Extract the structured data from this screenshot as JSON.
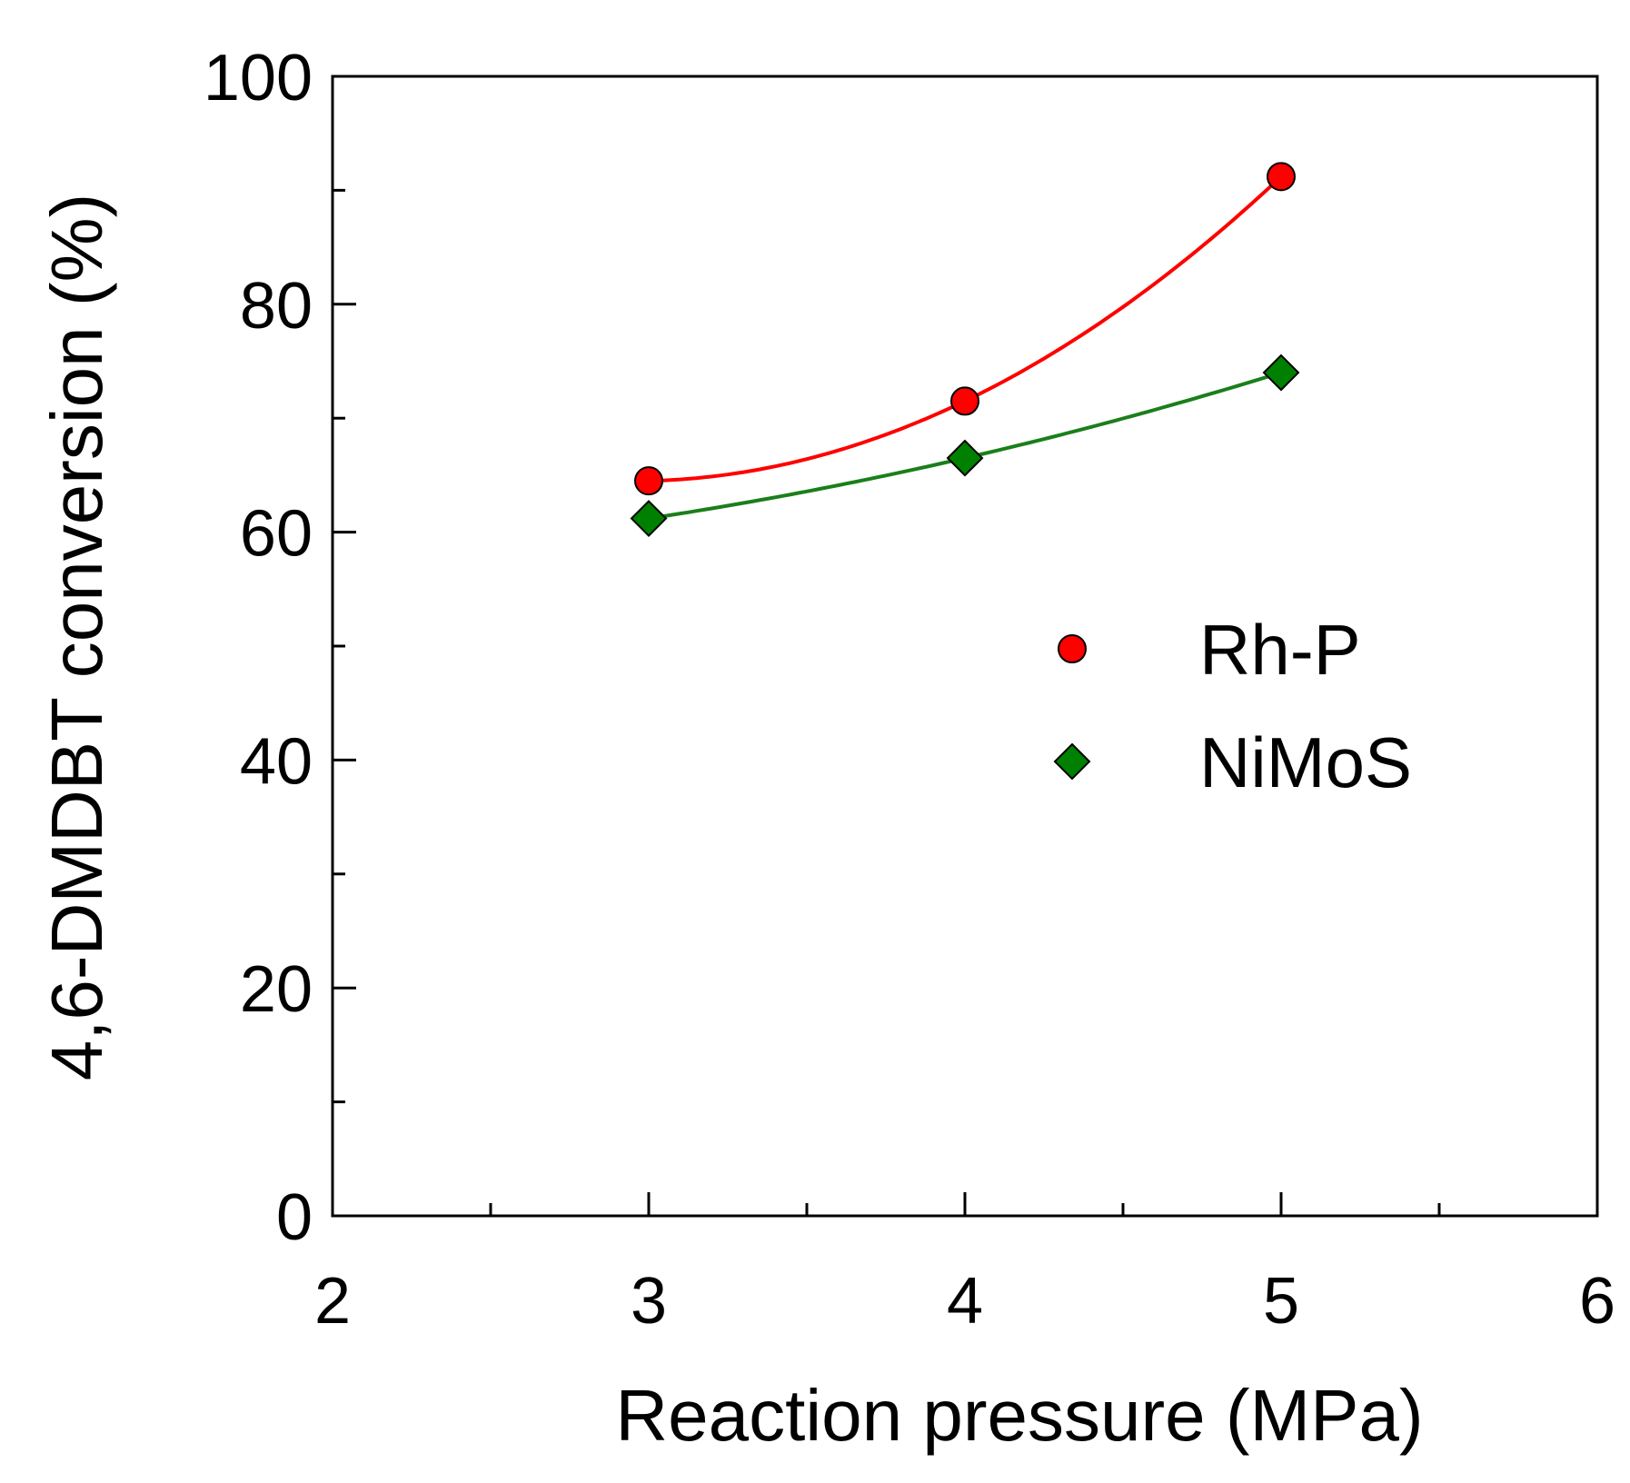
{
  "chart_data": {
    "type": "line",
    "title": "",
    "xlabel": "Reaction pressure (MPa)",
    "ylabel": "4,6-DMDBT conversion (%)",
    "xlim": [
      2,
      6
    ],
    "ylim": [
      0,
      100
    ],
    "x_ticks": [
      2,
      3,
      4,
      5,
      6
    ],
    "x_minor_ticks": [
      2.5,
      3.5,
      4.5,
      5.5
    ],
    "y_ticks": [
      0,
      20,
      40,
      60,
      80,
      100
    ],
    "y_minor_ticks": [
      10,
      30,
      50,
      70,
      90
    ],
    "grid": false,
    "legend_position": "center-right",
    "series": [
      {
        "name": "Rh-P",
        "marker": "circle",
        "color": "#ff0000",
        "line_color": "#ff0000",
        "x": [
          3,
          4,
          5
        ],
        "y": [
          64.5,
          71.5,
          91.2
        ]
      },
      {
        "name": "NiMoS",
        "marker": "diamond",
        "color": "#008000",
        "line_color": "#1a7f1a",
        "x": [
          3,
          4,
          5
        ],
        "y": [
          61.2,
          66.5,
          74
        ]
      }
    ]
  }
}
